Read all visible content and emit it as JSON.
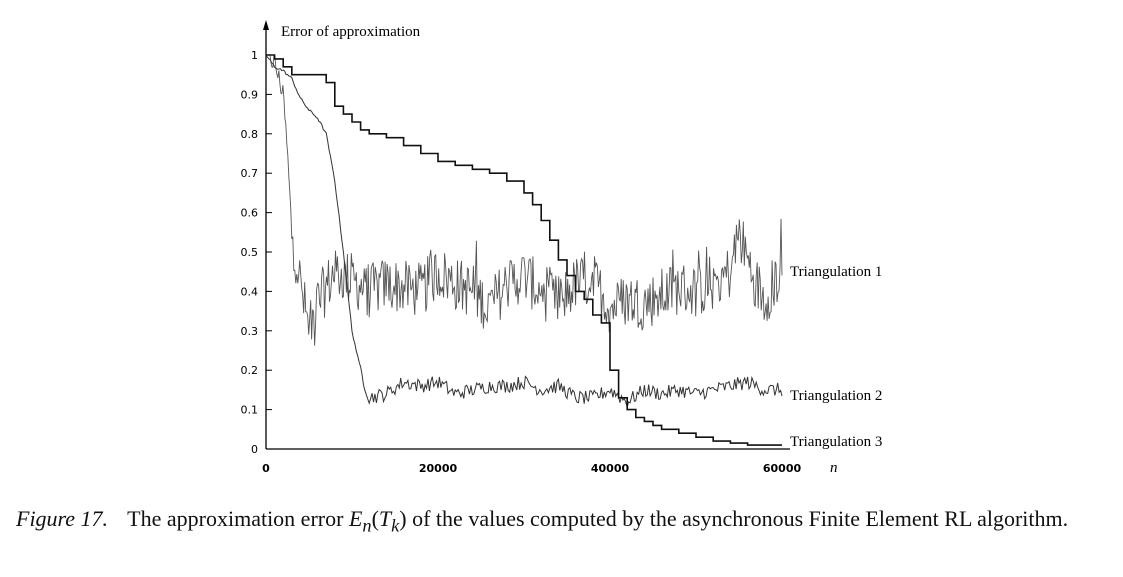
{
  "chart_data": {
    "type": "line",
    "ylabel": "Error of approximation",
    "xlabel": "n",
    "xlim": [
      0,
      60000
    ],
    "ylim": [
      0,
      1
    ],
    "x_ticks": [
      "0",
      "20000",
      "40000",
      "60000"
    ],
    "y_ticks": [
      "0",
      "0.1",
      "0.2",
      "0.3",
      "0.4",
      "0.5",
      "0.6",
      "0.7",
      "0.8",
      "0.9",
      "1"
    ],
    "grid": false,
    "series": [
      {
        "name": "Triangulation 1",
        "style": "noisy",
        "x": [
          0,
          1000,
          2000,
          2500,
          3000,
          4000,
          5000,
          6000,
          8000,
          10000,
          12000,
          14000,
          16000,
          18000,
          20000,
          22000,
          24000,
          26000,
          28000,
          30000,
          32000,
          34000,
          36000,
          38000,
          40000,
          42000,
          44000,
          46000,
          48000,
          50000,
          52000,
          54000,
          55000,
          56000,
          57000,
          58000,
          59000,
          60000
        ],
        "y": [
          1.0,
          0.98,
          0.9,
          0.75,
          0.55,
          0.42,
          0.3,
          0.37,
          0.45,
          0.43,
          0.4,
          0.42,
          0.41,
          0.4,
          0.45,
          0.42,
          0.4,
          0.36,
          0.42,
          0.44,
          0.4,
          0.37,
          0.42,
          0.43,
          0.36,
          0.38,
          0.37,
          0.39,
          0.41,
          0.4,
          0.42,
          0.45,
          0.55,
          0.48,
          0.42,
          0.38,
          0.42,
          0.45
        ]
      },
      {
        "name": "Triangulation 2",
        "style": "medium",
        "x": [
          0,
          1000,
          2000,
          3000,
          4000,
          5000,
          6000,
          7000,
          8000,
          9000,
          10000,
          11000,
          12000,
          14000,
          16000,
          18000,
          20000,
          22000,
          24000,
          26000,
          28000,
          30000,
          32000,
          34000,
          36000,
          38000,
          40000,
          42000,
          44000,
          46000,
          48000,
          50000,
          52000,
          54000,
          56000,
          58000,
          60000
        ],
        "y": [
          1.0,
          0.97,
          0.96,
          0.94,
          0.89,
          0.86,
          0.84,
          0.8,
          0.68,
          0.5,
          0.3,
          0.2,
          0.13,
          0.14,
          0.17,
          0.16,
          0.17,
          0.14,
          0.15,
          0.16,
          0.16,
          0.17,
          0.15,
          0.16,
          0.13,
          0.13,
          0.15,
          0.12,
          0.15,
          0.14,
          0.15,
          0.14,
          0.15,
          0.16,
          0.17,
          0.15,
          0.15
        ]
      },
      {
        "name": "Triangulation 3",
        "style": "step",
        "x": [
          0,
          1000,
          2000,
          3000,
          5000,
          7000,
          8000,
          9000,
          10000,
          11000,
          12000,
          14000,
          16000,
          18000,
          20000,
          22000,
          24000,
          26000,
          28000,
          30000,
          31000,
          32000,
          33000,
          34000,
          35000,
          36000,
          37000,
          38000,
          39000,
          40000,
          41000,
          42000,
          43000,
          44000,
          45000,
          46000,
          48000,
          50000,
          52000,
          54000,
          56000,
          58000,
          60000
        ],
        "y": [
          1.0,
          0.99,
          0.97,
          0.95,
          0.95,
          0.93,
          0.87,
          0.85,
          0.83,
          0.81,
          0.8,
          0.79,
          0.77,
          0.75,
          0.73,
          0.72,
          0.71,
          0.7,
          0.68,
          0.65,
          0.62,
          0.58,
          0.53,
          0.48,
          0.44,
          0.4,
          0.38,
          0.34,
          0.32,
          0.2,
          0.13,
          0.1,
          0.08,
          0.07,
          0.06,
          0.05,
          0.04,
          0.03,
          0.02,
          0.015,
          0.01,
          0.01,
          0.01
        ]
      }
    ]
  },
  "caption": {
    "label": "Figure 17.",
    "text_before": "The approximation error",
    "math": "E",
    "math_sub": "n",
    "math_paren_open": "(",
    "math_arg": "T",
    "math_arg_sub": "k",
    "math_paren_close": ")",
    "text_after": "of the values computed by the asynchronous Finite Element RL algorithm."
  }
}
